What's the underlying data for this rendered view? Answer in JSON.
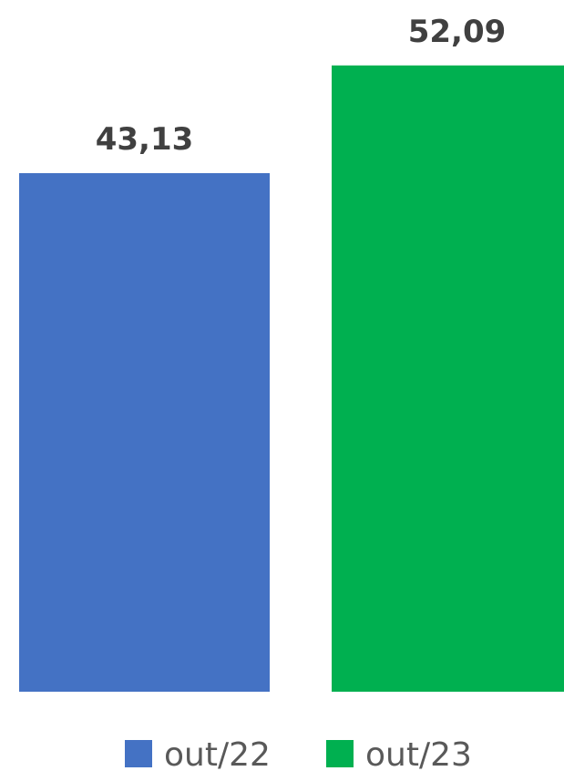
{
  "chart_data": {
    "type": "bar",
    "categories": [
      "out/22",
      "out/23"
    ],
    "values": [
      43.13,
      52.09
    ],
    "value_labels": [
      "43,13",
      "52,09"
    ],
    "colors": [
      "#4472C4",
      "#00B050"
    ],
    "legend": {
      "position": "bottom",
      "entries": [
        "out/22",
        "out/23"
      ]
    },
    "ylim": [
      0,
      60
    ],
    "grid": false,
    "title": "",
    "xlabel": "",
    "ylabel": ""
  }
}
